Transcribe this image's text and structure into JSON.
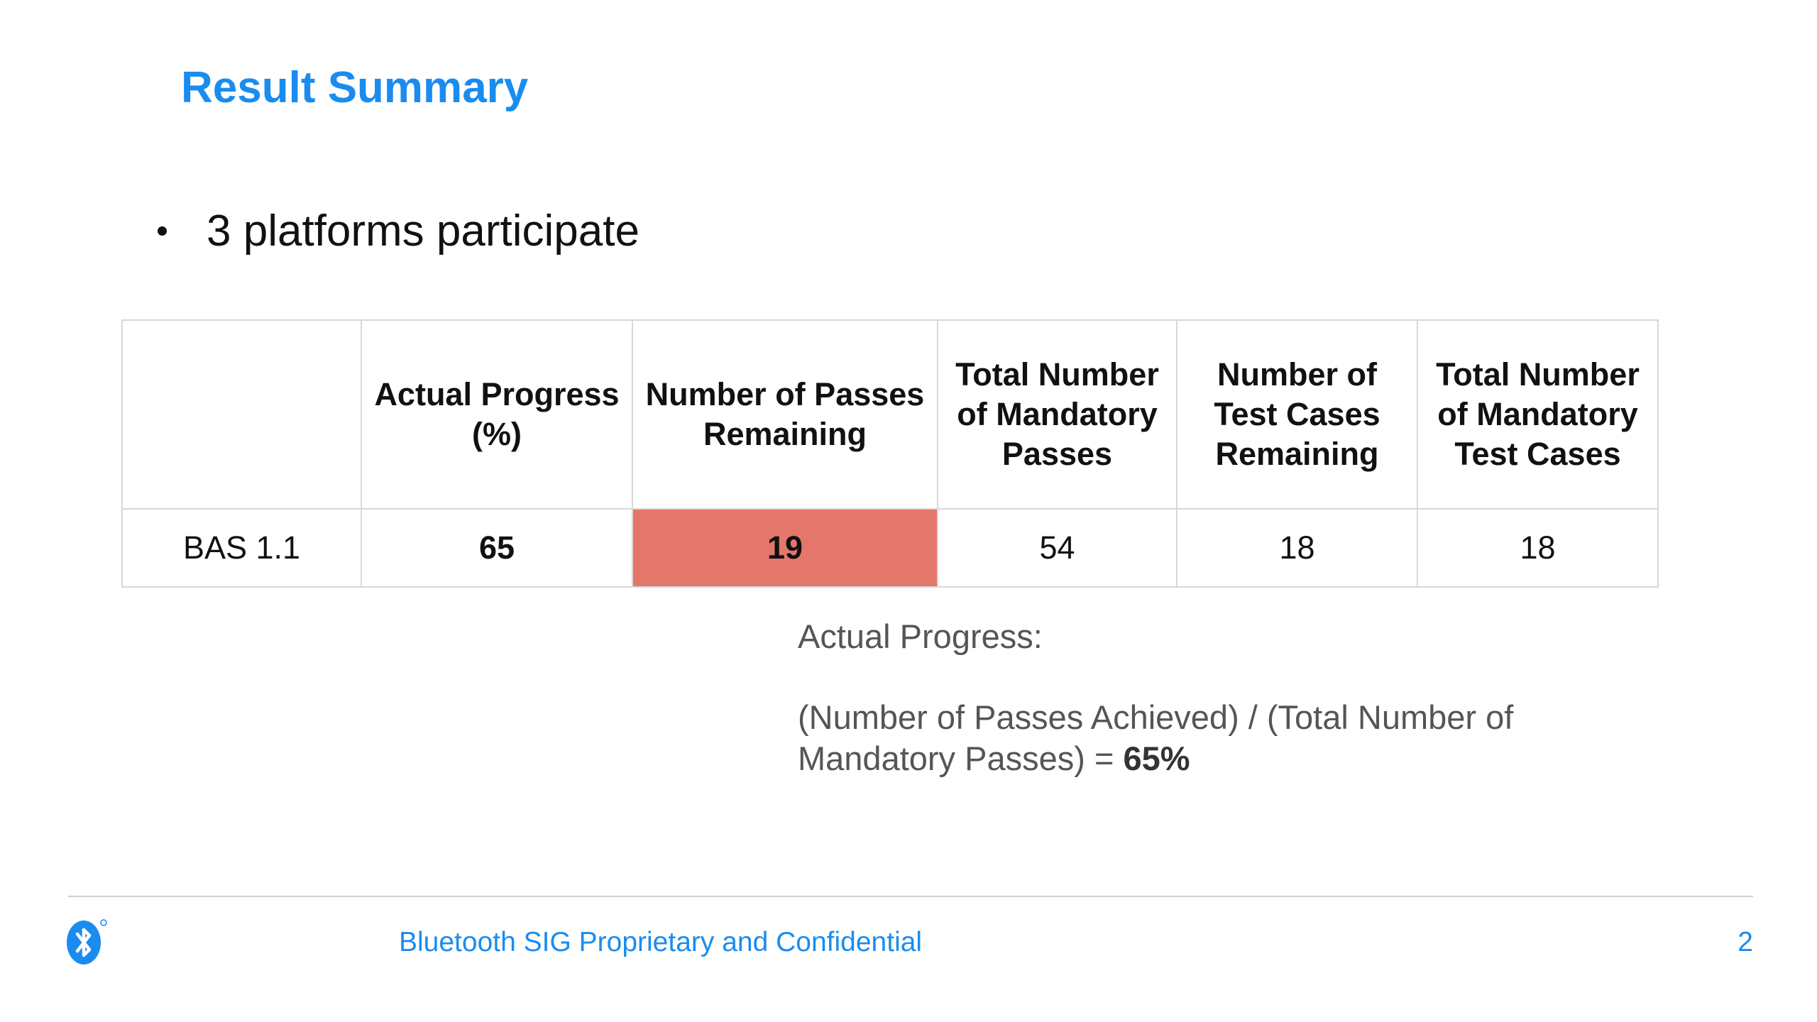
{
  "title": "Result Summary",
  "bullet": "3 platforms participate",
  "table": {
    "headers": [
      "",
      "Actual Progress (%)",
      "Number of Passes Remaining",
      "Total Number of Mandatory Passes",
      "Number of Test Cases Remaining",
      "Total Number of Mandatory Test Cases"
    ],
    "rows": [
      {
        "name": "BAS 1.1",
        "actual_progress": "65",
        "passes_remaining": "19",
        "total_mandatory_passes": "54",
        "test_cases_remaining": "18",
        "total_mandatory_test_cases": "18"
      }
    ],
    "highlight_color": "#e4766c"
  },
  "note": {
    "heading": "Actual Progress:",
    "formula": "(Number of Passes Achieved) / (Total Number of Mandatory Passes) = ",
    "result": "65%"
  },
  "footer": {
    "logo": "bluetooth-logo",
    "confidential": "Bluetooth SIG Proprietary and Confidential",
    "page_number": "2"
  },
  "colors": {
    "accent": "#1a8cf0",
    "text": "#111111",
    "note_text": "#555555"
  }
}
